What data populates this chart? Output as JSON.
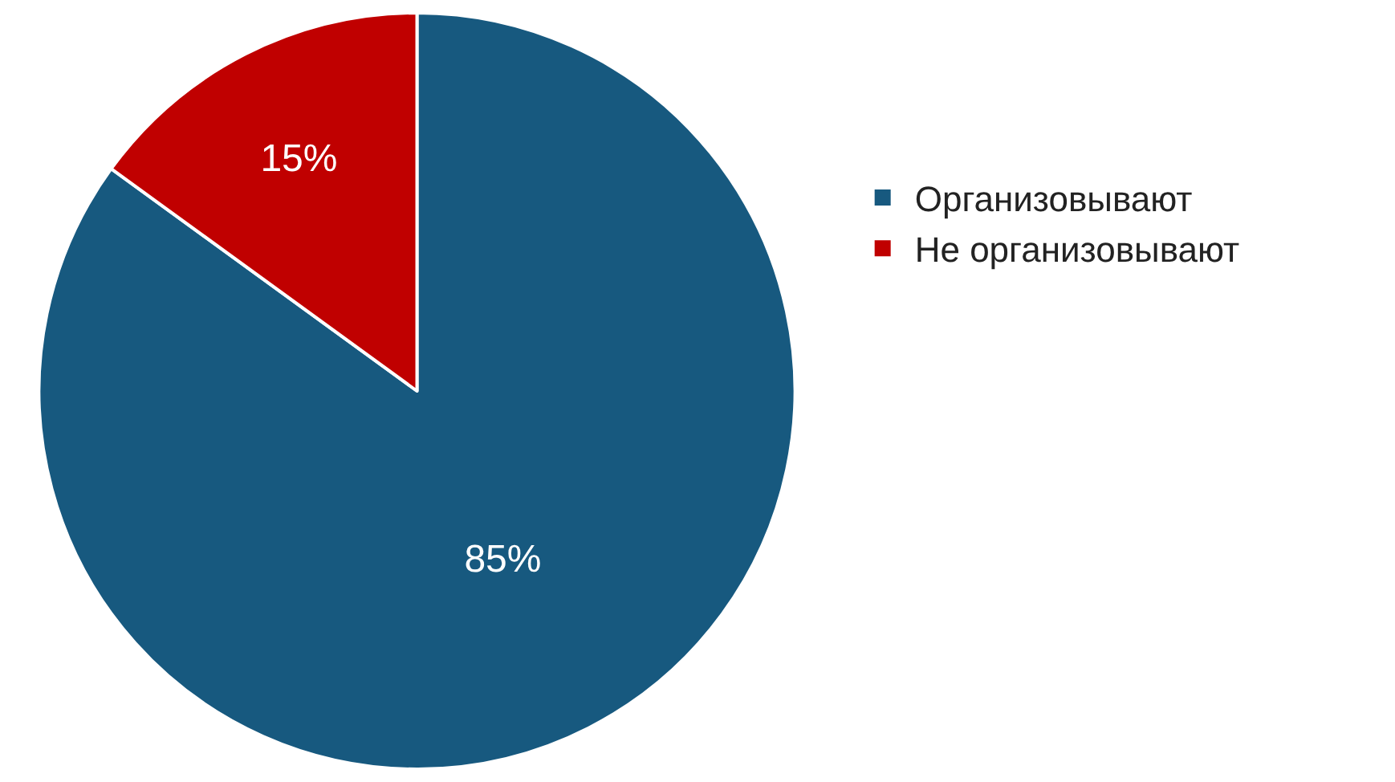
{
  "chart_data": {
    "type": "pie",
    "categories": [
      "Организовывают",
      "Не организовывают"
    ],
    "values": [
      85,
      15
    ],
    "colors": [
      "#17597f",
      "#c00000"
    ],
    "value_labels": [
      "85%",
      "15%"
    ],
    "legend": "right"
  }
}
